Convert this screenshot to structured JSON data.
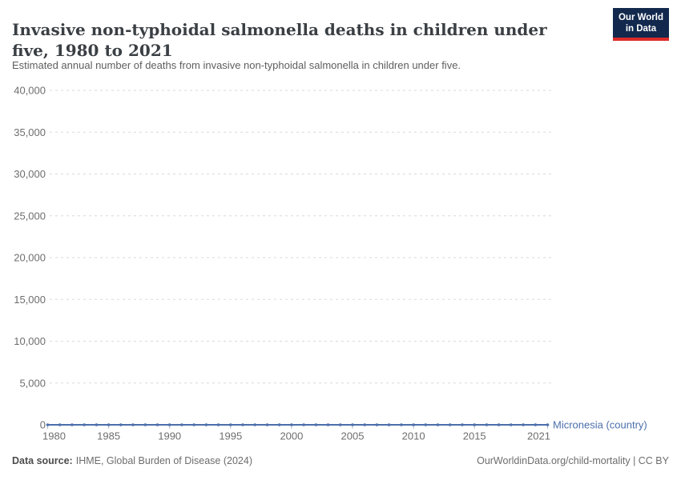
{
  "header": {
    "title": "Invasive non-typhoidal salmonella deaths in children under five, 1980 to 2021",
    "subtitle": "Estimated annual number of deaths from invasive non-typhoidal salmonella in children under five.",
    "logo": {
      "line1": "Our World",
      "line2": "in Data",
      "bg_color": "#12294d",
      "accent_color": "#dd2a2a"
    }
  },
  "chart_data": {
    "type": "line",
    "title": "Invasive non-typhoidal salmonella deaths in children under five, 1980 to 2021",
    "x": [
      1980,
      1981,
      1982,
      1983,
      1984,
      1985,
      1986,
      1987,
      1988,
      1989,
      1990,
      1991,
      1992,
      1993,
      1994,
      1995,
      1996,
      1997,
      1998,
      1999,
      2000,
      2001,
      2002,
      2003,
      2004,
      2005,
      2006,
      2007,
      2008,
      2009,
      2010,
      2011,
      2012,
      2013,
      2014,
      2015,
      2016,
      2017,
      2018,
      2019,
      2020,
      2021
    ],
    "series": [
      {
        "name": "Micronesia (country)",
        "color": "#4c6fab",
        "values": [
          0,
          0,
          0,
          0,
          0,
          0,
          0,
          0,
          0,
          0,
          0,
          0,
          0,
          0,
          0,
          0,
          0,
          0,
          0,
          0,
          0,
          0,
          0,
          0,
          0,
          0,
          0,
          0,
          0,
          0,
          0,
          0,
          0,
          0,
          0,
          0,
          0,
          0,
          0,
          0,
          0,
          0
        ]
      }
    ],
    "x_ticks": [
      1980,
      1985,
      1990,
      1995,
      2000,
      2005,
      2010,
      2015,
      2021
    ],
    "y_ticks": [
      0,
      5000,
      10000,
      15000,
      20000,
      25000,
      30000,
      35000,
      40000
    ],
    "xlim": [
      1980,
      2021
    ],
    "ylim": [
      0,
      40000
    ],
    "grid": "horizontal-dashed",
    "legend": "label-at-line-end",
    "marker": "circle-every-year",
    "gridline_color": "#dadada",
    "tick_label_color": "#6e6e6e"
  },
  "footer": {
    "source_label": "Data source:",
    "source_text": "IHME, Global Burden of Disease (2024)",
    "credit": "OurWorldinData.org/child-mortality | CC BY"
  }
}
